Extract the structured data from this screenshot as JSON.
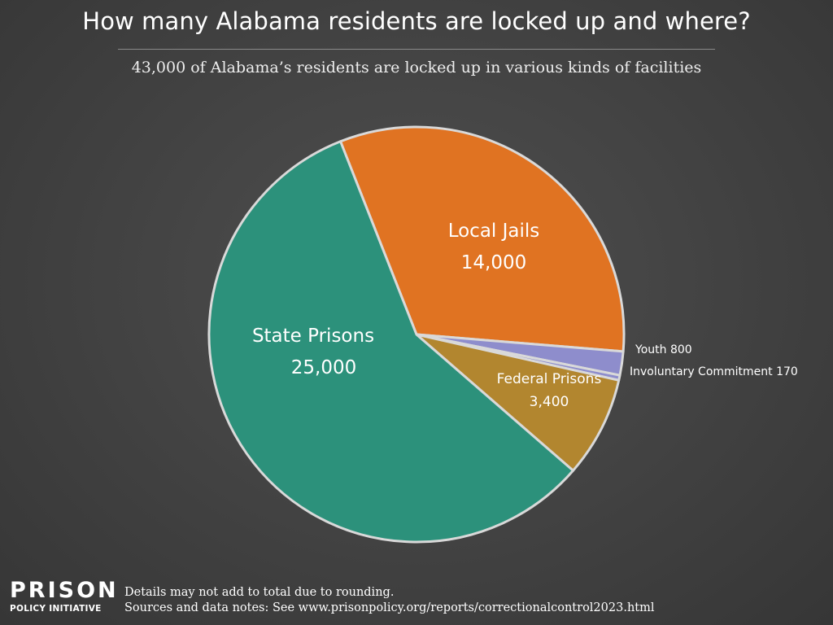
{
  "header": {
    "title": "How many Alabama residents are locked up and where?",
    "subtitle": "43,000 of Alabama’s residents are locked up in various kinds of facilities"
  },
  "chart_data": {
    "type": "pie",
    "slices": [
      {
        "label": "Local Jails",
        "value": 14000,
        "value_label": "14,000",
        "color": "#e07322"
      },
      {
        "label": "Youth",
        "value": 800,
        "value_label": "800",
        "color": "#8e8dcc"
      },
      {
        "label": "Involuntary Commitment",
        "value": 170,
        "value_label": "170",
        "color": "#8e8dcc"
      },
      {
        "label": "Federal Prisons",
        "value": 3400,
        "value_label": "3,400",
        "color": "#b2862f"
      },
      {
        "label": "State Prisons",
        "value": 25000,
        "value_label": "25,000",
        "color": "#2c917b"
      }
    ],
    "legend": "none"
  },
  "footer": {
    "logo_top": "PRISON",
    "logo_bottom": "POLICY INITIATIVE",
    "note_rounding": "Details may not add to total due to rounding.",
    "note_sources": "Sources and data notes: See www.prisonpolicy.org/reports/correctionalcontrol2023.html"
  }
}
